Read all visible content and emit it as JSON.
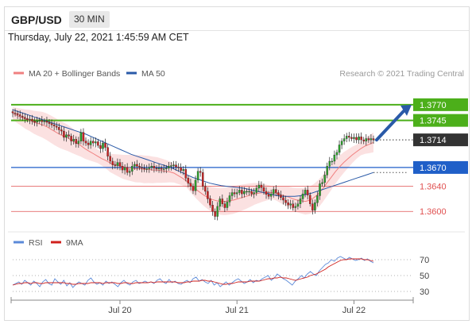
{
  "header": {
    "pair": "GBP/USD",
    "timeframe": "30 MIN"
  },
  "datetime": "Thursday, July 22, 2021 1:45:59 AM CET",
  "credit": "Research © 2021 Trading Central",
  "colors": {
    "up": "#2ca02c",
    "down": "#cc2222",
    "ma20": "#f08080",
    "ma50": "#2a5aa8",
    "band": "#f8c9c9",
    "resistance": "#4caf1a",
    "support_blue": "#1f5fc8",
    "support_red": "#e05050",
    "rsi": "#5b8ad9",
    "rsi_ma": "#d0201c",
    "arrow": "#2a5aa8",
    "price_tag": "#333333"
  },
  "chart_data": [
    {
      "type": "line",
      "title": "",
      "legend": [
        {
          "name": "MA 20 + Bollinger Bands",
          "color": "#f08080"
        },
        {
          "name": "MA 50",
          "color": "#2a5aa8"
        }
      ],
      "ylim": [
        1.3575,
        1.3785
      ],
      "x_ticks": [
        {
          "label": "Jul 20",
          "index": 44
        },
        {
          "label": "Jul 21",
          "index": 92
        },
        {
          "label": "Jul 22",
          "index": 140
        }
      ],
      "levels": [
        {
          "label": "1.3770",
          "value": 1.377,
          "kind": "resistance"
        },
        {
          "label": "1.3745",
          "value": 1.3745,
          "kind": "resistance"
        },
        {
          "label": "1.3714",
          "value": 1.3714,
          "kind": "last_price"
        },
        {
          "label": "1.3670",
          "value": 1.367,
          "kind": "support_blue"
        },
        {
          "label": "1.3640",
          "value": 1.364,
          "kind": "support_red"
        },
        {
          "label": "1.3600",
          "value": 1.36,
          "kind": "support_red"
        }
      ],
      "forecast_arrow": {
        "from": 1.3714,
        "to": 1.377
      },
      "close_series": [
        1.3757,
        1.3756,
        1.3754,
        1.3752,
        1.375,
        1.3748,
        1.3746,
        1.3747,
        1.3744,
        1.3742,
        1.3744,
        1.3745,
        1.3743,
        1.3744,
        1.3742,
        1.374,
        1.3738,
        1.3736,
        1.3734,
        1.373,
        1.3728,
        1.3718,
        1.3722,
        1.372,
        1.3712,
        1.3715,
        1.3708,
        1.3712,
        1.3726,
        1.3712,
        1.3709,
        1.3706,
        1.3712,
        1.3709,
        1.3711,
        1.3705,
        1.37,
        1.3709,
        1.3702,
        1.3688,
        1.368,
        1.3674,
        1.3673,
        1.3678,
        1.3672,
        1.3666,
        1.367,
        1.3662,
        1.3664,
        1.3672,
        1.3675,
        1.3672,
        1.367,
        1.3669,
        1.3668,
        1.3668,
        1.367,
        1.3672,
        1.3669,
        1.3668,
        1.3669,
        1.3667,
        1.3668,
        1.3669,
        1.3672,
        1.3673,
        1.3674,
        1.3671,
        1.367,
        1.3665,
        1.3667,
        1.3653,
        1.3645,
        1.364,
        1.3633,
        1.365,
        1.3664,
        1.3662,
        1.364,
        1.3632,
        1.362,
        1.361,
        1.36,
        1.3592,
        1.3608,
        1.362,
        1.3612,
        1.3606,
        1.3615,
        1.3625,
        1.363,
        1.3628,
        1.363,
        1.3634,
        1.3628,
        1.3632,
        1.3632,
        1.3632,
        1.3628,
        1.363,
        1.3637,
        1.3642,
        1.3638,
        1.3632,
        1.3627,
        1.3624,
        1.3628,
        1.3635,
        1.363,
        1.3626,
        1.3622,
        1.3618,
        1.3614,
        1.361,
        1.3612,
        1.3606,
        1.3608,
        1.3612,
        1.362,
        1.3628,
        1.3634,
        1.3626,
        1.3612,
        1.3602,
        1.3614,
        1.3625,
        1.3644,
        1.3646,
        1.3658,
        1.3672,
        1.368,
        1.368,
        1.369,
        1.3694,
        1.3706,
        1.3712,
        1.3716,
        1.372,
        1.3718,
        1.3716,
        1.3718,
        1.3714,
        1.3719,
        1.3714,
        1.3712,
        1.3716,
        1.3714,
        1.3716,
        1.3714
      ],
      "ma20_series": [
        1.3756,
        1.3753,
        1.375,
        1.3747,
        1.3745,
        1.3742,
        1.374,
        1.3738,
        1.3735,
        1.3731,
        1.3727,
        1.3723,
        1.372,
        1.3717,
        1.3713,
        1.3709,
        1.3705,
        1.37,
        1.3696,
        1.3692,
        1.3688,
        1.3684,
        1.3681,
        1.3677,
        1.3675,
        1.3673,
        1.3671,
        1.367,
        1.3669,
        1.3668,
        1.3668,
        1.3667,
        1.3667,
        1.3666,
        1.3666,
        1.3665,
        1.3664,
        1.3663,
        1.3661,
        1.3657,
        1.3653,
        1.3648,
        1.3642,
        1.3636,
        1.3631,
        1.3626,
        1.3622,
        1.3619,
        1.3617,
        1.3616,
        1.3616,
        1.3617,
        1.3618,
        1.362,
        1.3622,
        1.3624,
        1.3626,
        1.3628,
        1.3629,
        1.363,
        1.363,
        1.363,
        1.3629,
        1.3627,
        1.3625,
        1.3623,
        1.362,
        1.3618,
        1.3617,
        1.3616,
        1.3618,
        1.3622,
        1.3628,
        1.3636,
        1.3645,
        1.3654,
        1.3663,
        1.3671,
        1.3678,
        1.3684,
        1.369,
        1.3695,
        1.37,
        1.3704,
        1.3707,
        1.371
      ],
      "ma50_series": [
        1.3762,
        1.3759,
        1.3756,
        1.3753,
        1.375,
        1.3747,
        1.3744,
        1.3741,
        1.3738,
        1.3735,
        1.3732,
        1.3729,
        1.3726,
        1.3723,
        1.3719,
        1.3715,
        1.3711,
        1.3707,
        1.3703,
        1.3699,
        1.3695,
        1.3691,
        1.3688,
        1.3685,
        1.3682,
        1.3679,
        1.3676,
        1.3673,
        1.367,
        1.3666,
        1.3662,
        1.3658,
        1.3654,
        1.3651,
        1.3648,
        1.3645,
        1.3643,
        1.3641,
        1.364,
        1.3639,
        1.3638,
        1.3637,
        1.3635,
        1.3633,
        1.3631,
        1.3629,
        1.3627,
        1.3625,
        1.3624,
        1.3624,
        1.3624,
        1.3625,
        1.3627,
        1.3629,
        1.3632,
        1.3635,
        1.3638,
        1.3641,
        1.3644,
        1.3647,
        1.365,
        1.3653,
        1.3656,
        1.3659,
        1.3662
      ]
    },
    {
      "type": "line",
      "title": "",
      "legend": [
        {
          "name": "RSI",
          "color": "#5b8ad9"
        },
        {
          "name": "9MA",
          "color": "#d0201c"
        }
      ],
      "ylim": [
        20,
        80
      ],
      "y_ticks": [
        30,
        50,
        70
      ],
      "rsi_series": [
        38,
        40,
        42,
        39,
        44,
        41,
        38,
        43,
        40,
        36,
        42,
        45,
        40,
        38,
        46,
        42,
        39,
        44,
        37,
        41,
        35,
        39,
        42,
        40,
        38,
        44,
        47,
        42,
        39,
        41,
        38,
        43,
        40,
        42,
        39,
        36,
        41,
        44,
        40,
        38,
        42,
        44,
        40,
        41,
        43,
        41,
        42,
        40,
        44,
        46,
        42,
        40,
        45,
        41,
        43,
        40,
        39,
        42,
        44,
        41,
        46,
        48,
        43,
        45,
        42,
        40,
        44,
        38,
        41,
        36,
        39,
        42,
        38,
        41,
        44,
        46,
        43,
        40,
        42,
        45,
        41,
        44,
        43,
        46,
        48,
        50,
        44,
        47,
        52,
        49,
        46,
        44,
        41,
        38,
        43,
        46,
        50,
        47,
        52,
        55,
        52,
        50,
        56,
        60,
        64,
        66,
        70,
        68,
        72,
        74,
        72,
        70,
        73,
        71,
        69,
        70,
        72,
        69,
        71,
        68,
        66
      ],
      "rsi_ma_series": [
        38,
        39,
        40,
        40,
        41,
        41,
        40,
        41,
        41,
        40,
        40,
        41,
        41,
        41,
        41,
        41,
        41,
        41,
        40,
        40,
        39,
        39,
        40,
        40,
        40,
        40,
        41,
        41,
        41,
        41,
        40,
        41,
        41,
        41,
        41,
        40,
        40,
        41,
        41,
        40,
        40,
        41,
        41,
        41,
        41,
        41,
        42,
        41,
        42,
        42,
        42,
        42,
        42,
        42,
        42,
        41,
        41,
        41,
        42,
        42,
        43,
        43,
        43,
        44,
        44,
        43,
        43,
        42,
        41,
        40,
        39,
        39,
        40,
        40,
        41,
        42,
        42,
        42,
        42,
        43,
        43,
        43,
        43,
        44,
        45,
        46,
        46,
        47,
        47,
        48,
        47,
        47,
        46,
        45,
        44,
        45,
        46,
        47,
        48,
        50,
        51,
        52,
        54,
        56,
        58,
        61,
        63,
        65,
        67,
        69,
        70,
        70,
        71,
        71,
        71,
        71,
        71,
        70,
        70,
        69,
        68
      ]
    }
  ]
}
